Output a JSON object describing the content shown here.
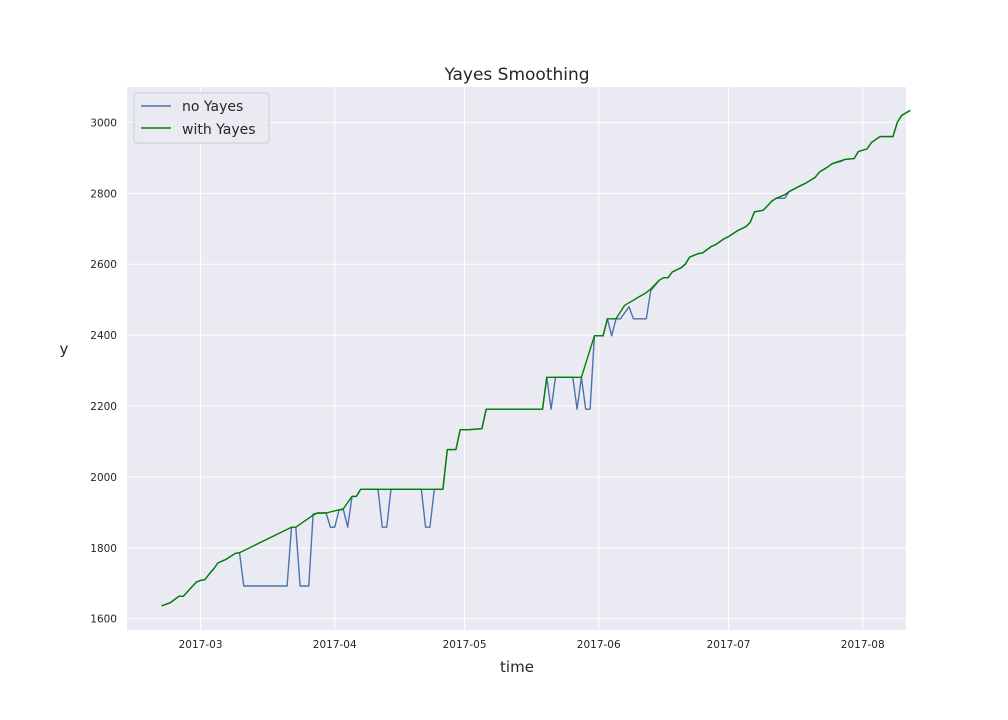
{
  "chart_data": {
    "type": "line",
    "title": "Yayes Smoothing",
    "xlabel": "time",
    "ylabel": "y",
    "x_axis": "date",
    "xlim": [
      "2017-02-12",
      "2017-08-11"
    ],
    "ylim": [
      1568,
      3100
    ],
    "x_ticks": [
      "2017-03-01",
      "2017-04-01",
      "2017-05-01",
      "2017-06-01",
      "2017-07-01",
      "2017-08-01"
    ],
    "x_tick_labels": [
      "2017-03",
      "2017-04",
      "2017-05",
      "2017-06",
      "2017-07",
      "2017-08"
    ],
    "y_ticks": [
      1600,
      1800,
      2000,
      2200,
      2400,
      2600,
      2800,
      3000
    ],
    "y_tick_labels": [
      "1600",
      "1800",
      "2000",
      "2200",
      "2400",
      "2600",
      "2800",
      "3000"
    ],
    "grid": true,
    "legend": "top-left",
    "background_color": "#eaeaf2",
    "series": [
      {
        "name": "no Yayes",
        "color": "#4c72b0",
        "points": [
          [
            "2017-02-20",
            1636
          ],
          [
            "2017-02-22",
            1645
          ],
          [
            "2017-02-24",
            1663
          ],
          [
            "2017-02-25",
            1663
          ],
          [
            "2017-02-27",
            1690
          ],
          [
            "2017-02-28",
            1703
          ],
          [
            "2017-03-01",
            1708
          ],
          [
            "2017-03-02",
            1710
          ],
          [
            "2017-03-03",
            1726
          ],
          [
            "2017-03-04",
            1740
          ],
          [
            "2017-03-05",
            1757
          ],
          [
            "2017-03-07",
            1768
          ],
          [
            "2017-03-09",
            1784
          ],
          [
            "2017-03-10",
            1786
          ],
          [
            "2017-03-11",
            1692
          ],
          [
            "2017-03-15",
            1692
          ],
          [
            "2017-03-21",
            1692
          ],
          [
            "2017-03-22",
            1858
          ],
          [
            "2017-03-23",
            1858
          ],
          [
            "2017-03-24",
            1692
          ],
          [
            "2017-03-26",
            1692
          ],
          [
            "2017-03-27",
            1895
          ],
          [
            "2017-03-28",
            1898
          ],
          [
            "2017-03-30",
            1898
          ],
          [
            "2017-03-31",
            1858
          ],
          [
            "2017-04-01",
            1858
          ],
          [
            "2017-04-02",
            1907
          ],
          [
            "2017-04-03",
            1907
          ],
          [
            "2017-04-04",
            1858
          ],
          [
            "2017-04-05",
            1945
          ],
          [
            "2017-04-06",
            1945
          ],
          [
            "2017-04-07",
            1965
          ],
          [
            "2017-04-10",
            1965
          ],
          [
            "2017-04-11",
            1965
          ],
          [
            "2017-04-12",
            1858
          ],
          [
            "2017-04-13",
            1858
          ],
          [
            "2017-04-14",
            1965
          ],
          [
            "2017-04-20",
            1965
          ],
          [
            "2017-04-21",
            1965
          ],
          [
            "2017-04-22",
            1858
          ],
          [
            "2017-04-23",
            1858
          ],
          [
            "2017-04-24",
            1965
          ],
          [
            "2017-04-26",
            1965
          ],
          [
            "2017-04-27",
            2077
          ],
          [
            "2017-04-28",
            2077
          ],
          [
            "2017-04-29",
            2077
          ],
          [
            "2017-04-30",
            2133
          ],
          [
            "2017-05-02",
            2133
          ],
          [
            "2017-05-05",
            2136
          ],
          [
            "2017-05-06",
            2191
          ],
          [
            "2017-05-10",
            2191
          ],
          [
            "2017-05-19",
            2191
          ],
          [
            "2017-05-20",
            2281
          ],
          [
            "2017-05-21",
            2191
          ],
          [
            "2017-05-22",
            2281
          ],
          [
            "2017-05-26",
            2281
          ],
          [
            "2017-05-27",
            2191
          ],
          [
            "2017-05-28",
            2281
          ],
          [
            "2017-05-29",
            2191
          ],
          [
            "2017-05-30",
            2191
          ],
          [
            "2017-05-31",
            2398
          ],
          [
            "2017-06-01",
            2398
          ],
          [
            "2017-06-02",
            2398
          ],
          [
            "2017-06-03",
            2446
          ],
          [
            "2017-06-04",
            2398
          ],
          [
            "2017-06-05",
            2446
          ],
          [
            "2017-06-06",
            2446
          ],
          [
            "2017-06-08",
            2480
          ],
          [
            "2017-06-09",
            2446
          ],
          [
            "2017-06-12",
            2446
          ],
          [
            "2017-06-13",
            2525
          ],
          [
            "2017-06-15",
            2555
          ],
          [
            "2017-06-16",
            2562
          ],
          [
            "2017-06-17",
            2562
          ],
          [
            "2017-06-18",
            2578
          ],
          [
            "2017-06-20",
            2590
          ],
          [
            "2017-06-21",
            2600
          ],
          [
            "2017-06-22",
            2620
          ],
          [
            "2017-06-24",
            2630
          ],
          [
            "2017-06-25",
            2632
          ],
          [
            "2017-06-27",
            2650
          ],
          [
            "2017-06-28",
            2655
          ],
          [
            "2017-06-30",
            2672
          ],
          [
            "2017-07-01",
            2678
          ],
          [
            "2017-07-03",
            2694
          ],
          [
            "2017-07-05",
            2706
          ],
          [
            "2017-07-06",
            2718
          ],
          [
            "2017-07-07",
            2748
          ],
          [
            "2017-07-09",
            2752
          ],
          [
            "2017-07-11",
            2778
          ],
          [
            "2017-07-12",
            2786
          ],
          [
            "2017-07-14",
            2786
          ],
          [
            "2017-07-15",
            2805
          ],
          [
            "2017-07-17",
            2818
          ],
          [
            "2017-07-19",
            2830
          ],
          [
            "2017-07-21",
            2845
          ],
          [
            "2017-07-22",
            2860
          ],
          [
            "2017-07-24",
            2875
          ],
          [
            "2017-07-25",
            2884
          ],
          [
            "2017-07-27",
            2890
          ],
          [
            "2017-07-28",
            2896
          ],
          [
            "2017-07-30",
            2898
          ],
          [
            "2017-07-31",
            2918
          ],
          [
            "2017-08-02",
            2925
          ],
          [
            "2017-08-03",
            2943
          ],
          [
            "2017-08-05",
            2960
          ],
          [
            "2017-08-08",
            2960
          ],
          [
            "2017-08-09",
            3000
          ],
          [
            "2017-08-10",
            3020
          ],
          [
            "2017-08-12",
            3034
          ]
        ]
      },
      {
        "name": "with Yayes",
        "color": "#008000",
        "points": [
          [
            "2017-02-20",
            1636
          ],
          [
            "2017-02-22",
            1645
          ],
          [
            "2017-02-24",
            1663
          ],
          [
            "2017-02-25",
            1663
          ],
          [
            "2017-02-27",
            1690
          ],
          [
            "2017-02-28",
            1703
          ],
          [
            "2017-03-01",
            1708
          ],
          [
            "2017-03-02",
            1710
          ],
          [
            "2017-03-03",
            1726
          ],
          [
            "2017-03-04",
            1740
          ],
          [
            "2017-03-05",
            1757
          ],
          [
            "2017-03-07",
            1768
          ],
          [
            "2017-03-09",
            1784
          ],
          [
            "2017-03-10",
            1786
          ],
          [
            "2017-03-22",
            1858
          ],
          [
            "2017-03-23",
            1858
          ],
          [
            "2017-03-27",
            1892
          ],
          [
            "2017-03-28",
            1898
          ],
          [
            "2017-03-30",
            1898
          ],
          [
            "2017-04-02",
            1907
          ],
          [
            "2017-04-03",
            1910
          ],
          [
            "2017-04-05",
            1945
          ],
          [
            "2017-04-06",
            1945
          ],
          [
            "2017-04-07",
            1965
          ],
          [
            "2017-04-26",
            1965
          ],
          [
            "2017-04-27",
            2077
          ],
          [
            "2017-04-28",
            2077
          ],
          [
            "2017-04-29",
            2077
          ],
          [
            "2017-04-30",
            2133
          ],
          [
            "2017-05-02",
            2133
          ],
          [
            "2017-05-05",
            2136
          ],
          [
            "2017-05-06",
            2191
          ],
          [
            "2017-05-10",
            2191
          ],
          [
            "2017-05-19",
            2191
          ],
          [
            "2017-05-20",
            2281
          ],
          [
            "2017-05-28",
            2281
          ],
          [
            "2017-05-31",
            2398
          ],
          [
            "2017-06-01",
            2398
          ],
          [
            "2017-06-02",
            2398
          ],
          [
            "2017-06-03",
            2446
          ],
          [
            "2017-06-05",
            2446
          ],
          [
            "2017-06-07",
            2484
          ],
          [
            "2017-06-12",
            2520
          ],
          [
            "2017-06-13",
            2530
          ],
          [
            "2017-06-15",
            2555
          ],
          [
            "2017-06-16",
            2562
          ],
          [
            "2017-06-17",
            2562
          ],
          [
            "2017-06-18",
            2578
          ],
          [
            "2017-06-20",
            2590
          ],
          [
            "2017-06-21",
            2600
          ],
          [
            "2017-06-22",
            2620
          ],
          [
            "2017-06-24",
            2630
          ],
          [
            "2017-06-25",
            2632
          ],
          [
            "2017-06-27",
            2650
          ],
          [
            "2017-06-28",
            2655
          ],
          [
            "2017-06-30",
            2672
          ],
          [
            "2017-07-01",
            2678
          ],
          [
            "2017-07-03",
            2694
          ],
          [
            "2017-07-05",
            2706
          ],
          [
            "2017-07-06",
            2718
          ],
          [
            "2017-07-07",
            2748
          ],
          [
            "2017-07-09",
            2752
          ],
          [
            "2017-07-11",
            2778
          ],
          [
            "2017-07-12",
            2786
          ],
          [
            "2017-07-14",
            2796
          ],
          [
            "2017-07-15",
            2805
          ],
          [
            "2017-07-17",
            2818
          ],
          [
            "2017-07-19",
            2830
          ],
          [
            "2017-07-21",
            2845
          ],
          [
            "2017-07-22",
            2860
          ],
          [
            "2017-07-24",
            2875
          ],
          [
            "2017-07-25",
            2884
          ],
          [
            "2017-07-27",
            2892
          ],
          [
            "2017-07-28",
            2896
          ],
          [
            "2017-07-30",
            2898
          ],
          [
            "2017-07-31",
            2918
          ],
          [
            "2017-08-02",
            2925
          ],
          [
            "2017-08-03",
            2943
          ],
          [
            "2017-08-05",
            2960
          ],
          [
            "2017-08-08",
            2960
          ],
          [
            "2017-08-09",
            3000
          ],
          [
            "2017-08-10",
            3020
          ],
          [
            "2017-08-12",
            3034
          ]
        ]
      }
    ]
  }
}
